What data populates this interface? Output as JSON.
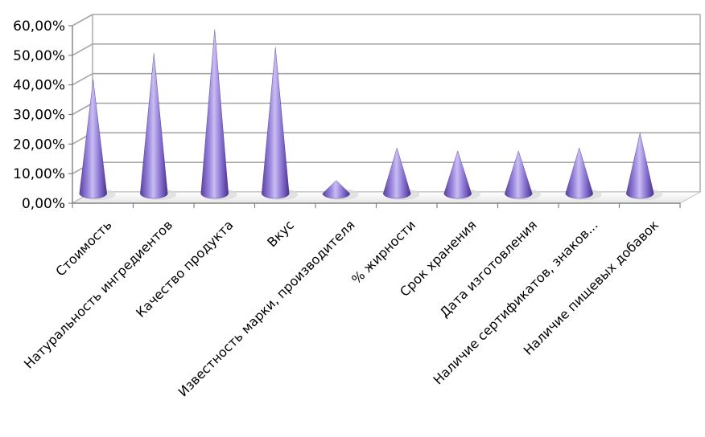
{
  "chart_data": {
    "type": "bar",
    "bar_shape": "cone-3d",
    "title": "",
    "xlabel": "",
    "ylabel": "",
    "categories": [
      "Стоимость",
      "Натуральность ингредиентов",
      "Качество продукта",
      "Вкус",
      "Известность марки, производителя",
      "% жирности",
      "Срок хранения",
      "Дата изготовления",
      "Наличие сертификатов, знаков...",
      "Наличие пищевых добавок"
    ],
    "values": [
      0.39,
      0.48,
      0.56,
      0.5,
      0.05,
      0.16,
      0.15,
      0.15,
      0.16,
      0.21
    ],
    "ylim": [
      0,
      0.6
    ],
    "yticks": [
      "0,00%",
      "10,00%",
      "20,00%",
      "30,00%",
      "40,00%",
      "50,00%",
      "60,00%"
    ],
    "grid": true,
    "legend": "none",
    "colors": {
      "cone_light": "#c3b4ef",
      "cone_mid": "#8a74d2",
      "cone_dark": "#4e3592",
      "gridline": "#a6a6a6",
      "axis": "#808080",
      "text": "#000000"
    }
  }
}
